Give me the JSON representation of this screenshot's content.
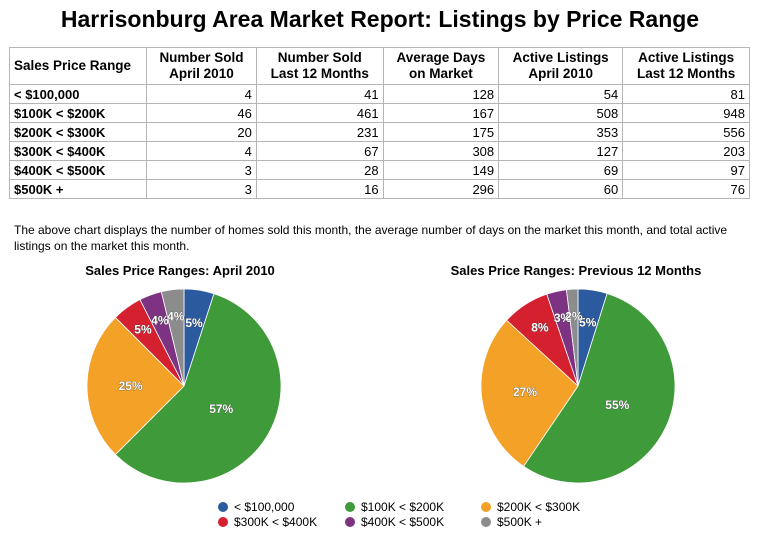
{
  "title": "Harrisonburg Area Market Report: Listings by Price Range",
  "table": {
    "headers": [
      [
        "Sales Price Range",
        ""
      ],
      [
        "Number Sold",
        "April 2010"
      ],
      [
        "Number Sold",
        "Last 12 Months"
      ],
      [
        "Average Days",
        "on Market"
      ],
      [
        "Active Listings",
        "April 2010"
      ],
      [
        "Active Listings",
        "Last 12 Months"
      ]
    ],
    "rows": [
      [
        "< $100,000",
        "4",
        "41",
        "128",
        "54",
        "81"
      ],
      [
        "$100K < $200K",
        "46",
        "461",
        "167",
        "508",
        "948"
      ],
      [
        "$200K < $300K",
        "20",
        "231",
        "175",
        "353",
        "556"
      ],
      [
        "$300K < $400K",
        "4",
        "67",
        "308",
        "127",
        "203"
      ],
      [
        "$400K < $500K",
        "3",
        "28",
        "149",
        "69",
        "97"
      ],
      [
        "$500K +",
        "3",
        "16",
        "296",
        "60",
        "76"
      ]
    ]
  },
  "caption": "The above chart displays the number of homes sold this month, the average number of days on the market this month, and total active listings on the market this month.",
  "legend": [
    {
      "label": "< $100,000",
      "color": "#2b5a9e"
    },
    {
      "label": "$100K < $200K",
      "color": "#3f9b3a"
    },
    {
      "label": "$200K < $300K",
      "color": "#f4a127"
    },
    {
      "label": "$300K < $400K",
      "color": "#d4202f"
    },
    {
      "label": "$400K < $500K",
      "color": "#7d3382"
    },
    {
      "label": "$500K +",
      "color": "#8c8c8c"
    }
  ],
  "chart_data": [
    {
      "type": "pie",
      "title": "Sales Price Ranges: April 2010",
      "categories": [
        "< $100,000",
        "$100K < $200K",
        "$200K < $300K",
        "$300K < $400K",
        "$400K < $500K",
        "$500K +"
      ],
      "values": [
        4,
        46,
        20,
        4,
        3,
        3
      ],
      "labels": [
        "5%",
        "57%",
        "25%",
        "5%",
        "4%",
        "4%"
      ]
    },
    {
      "type": "pie",
      "title": "Sales Price Ranges: Previous 12 Months",
      "categories": [
        "< $100,000",
        "$100K < $200K",
        "$200K < $300K",
        "$300K < $400K",
        "$400K < $500K",
        "$500K +"
      ],
      "values": [
        41,
        461,
        231,
        67,
        28,
        16
      ],
      "labels": [
        "5%",
        "55%",
        "27%",
        "8%",
        "3%",
        "2%"
      ]
    }
  ]
}
